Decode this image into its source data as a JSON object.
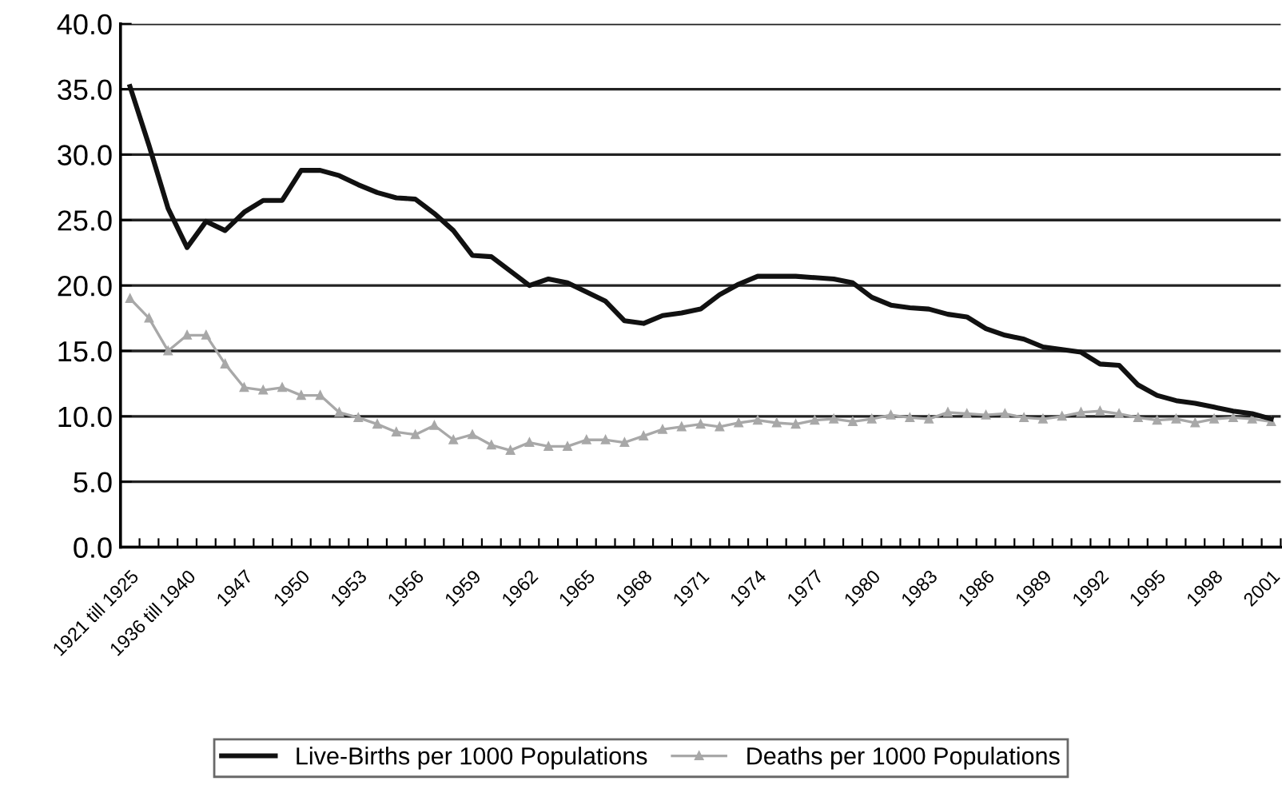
{
  "chart_data": {
    "type": "line",
    "categories": [
      "1921 till 1925",
      null,
      null,
      "1936 till 1940",
      null,
      null,
      "1947",
      null,
      null,
      "1950",
      null,
      null,
      "1953",
      null,
      null,
      "1956",
      null,
      null,
      "1959",
      null,
      null,
      "1962",
      null,
      null,
      "1965",
      null,
      null,
      "1968",
      null,
      null,
      "1971",
      null,
      null,
      "1974",
      null,
      null,
      "1977",
      null,
      null,
      "1980",
      null,
      null,
      "1983",
      null,
      null,
      "1986",
      null,
      null,
      "1989",
      null,
      null,
      "1992",
      null,
      null,
      "1995",
      null,
      null,
      "1998",
      null,
      null,
      "2001"
    ],
    "series": [
      {
        "name": "Live-Births per 1000 Populations",
        "color": "#111111",
        "marker": "none",
        "values": [
          35.2,
          30.7,
          25.9,
          22.9,
          24.9,
          24.2,
          25.6,
          26.5,
          26.5,
          28.8,
          28.8,
          28.4,
          27.7,
          27.1,
          26.7,
          26.6,
          25.5,
          24.2,
          22.3,
          22.2,
          21.1,
          20.0,
          20.5,
          20.2,
          19.5,
          18.8,
          17.3,
          17.1,
          17.7,
          17.9,
          18.2,
          19.3,
          20.1,
          20.7,
          20.7,
          20.7,
          20.6,
          20.5,
          20.2,
          19.1,
          18.5,
          18.3,
          18.2,
          17.8,
          17.6,
          16.7,
          16.2,
          15.9,
          15.3,
          15.1,
          14.9,
          14.0,
          13.9,
          12.4,
          11.6,
          11.2,
          11.0,
          10.7,
          10.4,
          10.2,
          9.8
        ]
      },
      {
        "name": "Deaths per 1000 Populations",
        "color": "#a8a8a8",
        "marker": "triangle",
        "values": [
          19.0,
          17.5,
          15.0,
          16.2,
          16.2,
          14.0,
          12.2,
          12.0,
          12.2,
          11.6,
          11.6,
          10.3,
          9.9,
          9.4,
          8.8,
          8.6,
          9.3,
          8.2,
          8.6,
          7.8,
          7.4,
          8.0,
          7.7,
          7.7,
          8.2,
          8.2,
          8.0,
          8.5,
          9.0,
          9.2,
          9.4,
          9.2,
          9.5,
          9.7,
          9.5,
          9.4,
          9.7,
          9.8,
          9.6,
          9.8,
          10.1,
          9.9,
          9.8,
          10.3,
          10.2,
          10.1,
          10.2,
          9.9,
          9.8,
          10.0,
          10.3,
          10.4,
          10.2,
          9.9,
          9.7,
          9.8,
          9.5,
          9.8,
          9.9,
          9.8,
          9.6
        ]
      }
    ],
    "ylim": [
      0,
      40
    ],
    "yticks": [
      {
        "value": 0,
        "label": "0.0"
      },
      {
        "value": 5,
        "label": "5.0"
      },
      {
        "value": 10,
        "label": "10.0"
      },
      {
        "value": 15,
        "label": "15.0"
      },
      {
        "value": 20,
        "label": "20.0"
      },
      {
        "value": 25,
        "label": "25.0"
      },
      {
        "value": 30,
        "label": "30.0"
      },
      {
        "value": 35,
        "label": "35.0"
      },
      {
        "value": 40,
        "label": "40.0"
      }
    ],
    "grid": "y",
    "legend": "bottom",
    "line_style": "solid"
  }
}
